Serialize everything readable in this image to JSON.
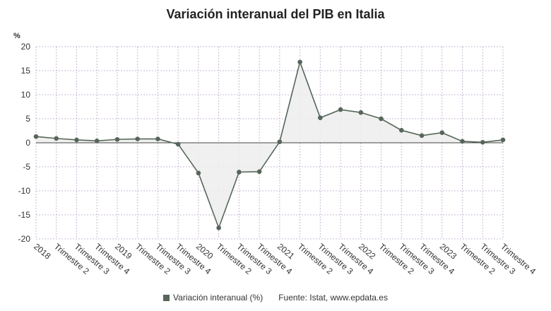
{
  "chart_data": {
    "type": "area",
    "title": "Variación interanual del PIB en Italia",
    "ylabel": "%",
    "ylim": [
      -20,
      20
    ],
    "yticks": [
      20,
      15,
      10,
      5,
      0,
      -5,
      -10,
      -15,
      -20
    ],
    "grid": true,
    "categories": [
      "2018",
      "Trimestre 2",
      "Trimestre 3",
      "Trimestre 4",
      "2019",
      "Trimestre 2",
      "Trimestre 3",
      "Trimestre 4",
      "2020",
      "Trimestre 2",
      "Trimestre 3",
      "Trimestre 4",
      "2021",
      "Trimestre 2",
      "Trimestre 3",
      "Trimestre 4",
      "2022",
      "Trimestre 2",
      "Trimestre 3",
      "Trimestre 4",
      "2023",
      "Trimestre 2",
      "Trimestre 3",
      "Trimestre 4"
    ],
    "series": [
      {
        "name": "Variación interanual (%)",
        "values": [
          1.3,
          0.9,
          0.6,
          0.4,
          0.7,
          0.8,
          0.8,
          -0.3,
          -6.3,
          -17.7,
          -6.1,
          -6.0,
          0.2,
          16.8,
          5.2,
          6.9,
          6.3,
          5.0,
          2.6,
          1.5,
          2.1,
          0.3,
          0.1,
          0.6
        ],
        "color": "#56665a"
      }
    ],
    "legend_position": "bottom",
    "source": "Fuente: Istat, www.epdata.es"
  }
}
